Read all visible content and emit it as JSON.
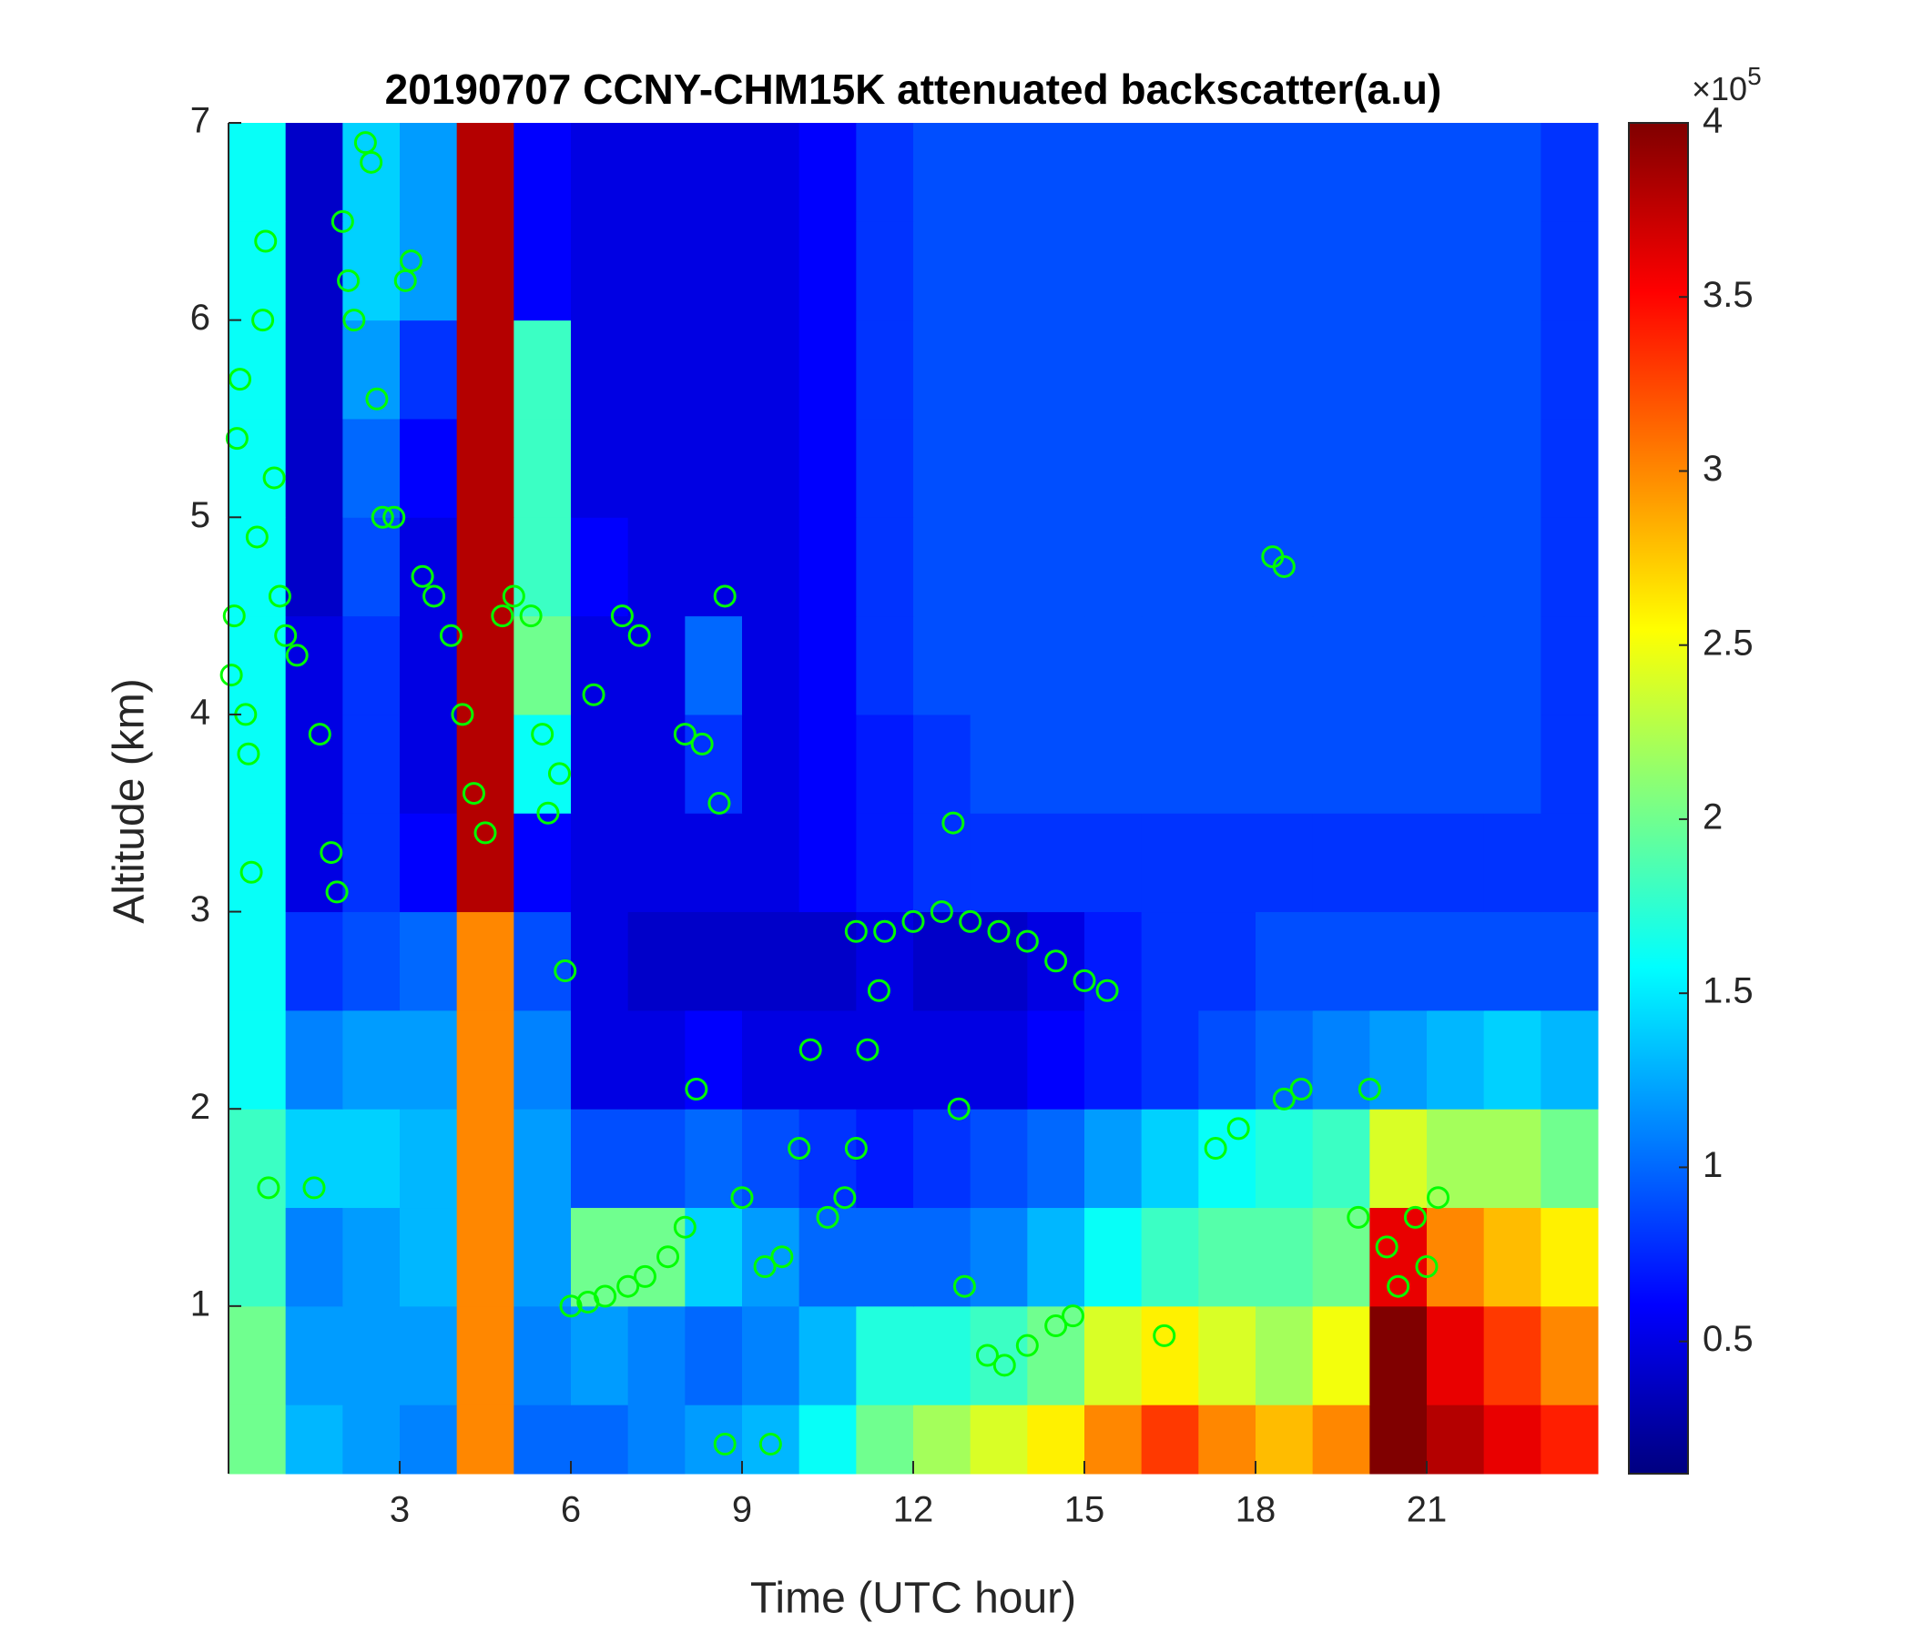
{
  "chart_data": {
    "type": "heatmap",
    "title": "20190707 CCNY-CHM15K attenuated backscatter(a.u)",
    "x_label": "Time (UTC hour)",
    "y_label": "Altitude (km)",
    "xlim": [
      0,
      24
    ],
    "ylim": [
      0.15,
      7
    ],
    "xticks": [
      3,
      6,
      9,
      12,
      15,
      18,
      21
    ],
    "yticks": [
      1,
      2,
      3,
      4,
      5,
      6,
      7
    ],
    "xbins": [
      0,
      1,
      2,
      3,
      4,
      5,
      6,
      7,
      8,
      9,
      10,
      11,
      12,
      13,
      14,
      15,
      16,
      17,
      18,
      19,
      20,
      21,
      22,
      23,
      24
    ],
    "ybins": [
      0.15,
      0.5,
      1,
      1.5,
      2,
      2.5,
      3,
      3.5,
      4,
      4.5,
      5,
      5.5,
      6,
      6.5,
      7
    ],
    "z": [
      [
        2.0,
        1.3,
        1.2,
        1.1,
        3.0,
        1.0,
        1.0,
        1.1,
        1.2,
        1.3,
        1.6,
        2.0,
        2.2,
        2.4,
        2.6,
        3.0,
        3.3,
        3.0,
        2.8,
        3.0,
        4.0,
        3.8,
        3.6,
        3.4
      ],
      [
        2.0,
        1.2,
        1.2,
        1.2,
        3.0,
        1.1,
        1.2,
        1.1,
        1.0,
        1.1,
        1.3,
        1.7,
        1.7,
        1.8,
        2.0,
        2.4,
        2.6,
        2.4,
        2.2,
        2.5,
        4.0,
        3.6,
        3.3,
        3.0
      ],
      [
        1.8,
        1.1,
        1.2,
        1.3,
        3.0,
        1.2,
        2.0,
        2.0,
        1.4,
        1.2,
        1.0,
        1.0,
        1.0,
        1.1,
        1.3,
        1.6,
        1.8,
        1.9,
        1.9,
        2.0,
        3.6,
        3.0,
        2.8,
        2.6
      ],
      [
        1.8,
        1.4,
        1.4,
        1.3,
        3.0,
        1.2,
        0.9,
        0.9,
        1.0,
        0.9,
        0.8,
        0.7,
        0.8,
        0.9,
        1.0,
        1.2,
        1.4,
        1.6,
        1.7,
        1.8,
        2.4,
        2.2,
        2.2,
        2.0
      ],
      [
        1.6,
        1.1,
        1.2,
        1.2,
        3.0,
        1.1,
        0.5,
        0.5,
        0.6,
        0.5,
        0.5,
        0.5,
        0.5,
        0.5,
        0.6,
        0.7,
        0.8,
        0.9,
        1.0,
        1.1,
        1.2,
        1.3,
        1.4,
        1.3
      ],
      [
        1.6,
        0.8,
        0.9,
        1.0,
        3.0,
        0.9,
        0.5,
        0.4,
        0.4,
        0.4,
        0.4,
        0.5,
        0.4,
        0.4,
        0.5,
        0.7,
        0.8,
        0.8,
        0.9,
        0.9,
        0.9,
        0.9,
        0.9,
        0.9
      ],
      [
        1.6,
        0.5,
        0.8,
        0.6,
        3.8,
        0.6,
        0.5,
        0.5,
        0.5,
        0.5,
        0.6,
        0.7,
        0.8,
        0.8,
        0.8,
        0.8,
        0.8,
        0.8,
        0.8,
        0.8,
        0.8,
        0.8,
        0.8,
        0.8
      ],
      [
        1.6,
        0.5,
        0.8,
        0.5,
        3.8,
        1.6,
        0.5,
        0.5,
        0.8,
        0.5,
        0.6,
        0.7,
        0.8,
        0.9,
        0.9,
        0.9,
        0.9,
        0.9,
        0.9,
        0.9,
        0.9,
        0.9,
        0.9,
        0.8
      ],
      [
        1.6,
        0.5,
        0.8,
        0.5,
        3.8,
        2.0,
        0.5,
        0.5,
        1.0,
        0.5,
        0.6,
        0.8,
        0.9,
        0.9,
        0.9,
        0.9,
        0.9,
        0.9,
        0.9,
        0.9,
        0.9,
        0.9,
        0.9,
        0.8
      ],
      [
        1.6,
        0.4,
        0.9,
        0.5,
        3.8,
        1.8,
        0.6,
        0.5,
        0.5,
        0.5,
        0.6,
        0.8,
        0.9,
        0.9,
        0.9,
        0.9,
        0.9,
        0.9,
        0.9,
        0.9,
        0.9,
        0.9,
        0.9,
        0.8
      ],
      [
        1.6,
        0.4,
        1.0,
        0.6,
        3.8,
        1.8,
        0.5,
        0.5,
        0.5,
        0.5,
        0.6,
        0.8,
        0.9,
        0.9,
        0.9,
        0.9,
        0.9,
        0.9,
        0.9,
        0.9,
        0.9,
        0.9,
        0.9,
        0.8
      ],
      [
        1.6,
        0.4,
        1.2,
        0.8,
        3.8,
        1.8,
        0.5,
        0.5,
        0.5,
        0.5,
        0.6,
        0.8,
        0.9,
        0.9,
        0.9,
        0.9,
        0.9,
        0.9,
        0.9,
        0.9,
        0.9,
        0.9,
        0.9,
        0.8
      ],
      [
        1.6,
        0.4,
        1.4,
        1.2,
        3.8,
        0.6,
        0.5,
        0.5,
        0.5,
        0.5,
        0.6,
        0.8,
        0.9,
        0.9,
        0.9,
        0.9,
        0.9,
        0.9,
        0.9,
        0.9,
        0.9,
        0.9,
        0.9,
        0.8
      ],
      [
        1.6,
        0.4,
        1.4,
        1.2,
        3.8,
        0.6,
        0.5,
        0.5,
        0.5,
        0.5,
        0.6,
        0.8,
        0.9,
        0.9,
        0.9,
        0.9,
        0.9,
        0.9,
        0.9,
        0.9,
        0.9,
        0.9,
        0.9,
        0.8
      ]
    ],
    "colormap": "jet",
    "clim": [
      0.12,
      4
    ],
    "colorbar_ticks": [
      0.5,
      1,
      1.5,
      2,
      2.5,
      3,
      3.5,
      4
    ],
    "colorbar_scale": "×10",
    "colorbar_exponent": 5,
    "scatter": {
      "color": "#00ff00",
      "x": [
        0.05,
        0.1,
        0.15,
        0.2,
        0.3,
        0.35,
        0.4,
        0.5,
        0.6,
        0.65,
        0.7,
        0.8,
        0.9,
        1.0,
        1.2,
        1.5,
        1.6,
        1.8,
        1.9,
        2.0,
        2.1,
        2.2,
        2.4,
        2.5,
        2.6,
        2.7,
        2.9,
        3.1,
        3.2,
        3.4,
        3.6,
        3.9,
        4.1,
        4.3,
        4.5,
        4.8,
        5.0,
        5.3,
        5.5,
        5.6,
        5.8,
        5.9,
        6.0,
        6.3,
        6.6,
        7.0,
        7.3,
        7.7,
        8.0,
        6.4,
        6.9,
        7.2,
        8.0,
        8.3,
        8.2,
        8.7,
        8.6,
        9.0,
        9.4,
        9.7,
        10.0,
        10.2,
        10.5,
        10.8,
        11.0,
        11.2,
        11.4,
        11.0,
        11.5,
        12.0,
        12.5,
        13.0,
        13.5,
        14.0,
        14.5,
        15.0,
        15.4,
        12.8,
        12.9,
        13.3,
        13.6,
        14.0,
        14.5,
        14.8,
        16.4,
        17.3,
        17.7,
        18.3,
        18.5,
        18.5,
        18.8,
        19.8,
        20.0,
        20.3,
        20.5,
        20.8,
        21.0,
        21.2,
        8.7,
        9.5,
        12.7
      ],
      "y": [
        4.2,
        4.5,
        5.4,
        5.7,
        4.0,
        3.8,
        3.2,
        4.9,
        6.0,
        6.4,
        1.6,
        5.2,
        4.6,
        4.4,
        4.3,
        1.6,
        3.9,
        3.3,
        3.1,
        6.5,
        6.2,
        6.0,
        6.9,
        6.8,
        5.6,
        5.0,
        5.0,
        6.2,
        6.3,
        4.7,
        4.6,
        4.4,
        4.0,
        3.6,
        3.4,
        4.5,
        4.6,
        4.5,
        3.9,
        3.5,
        3.7,
        2.7,
        1.0,
        1.02,
        1.05,
        1.1,
        1.15,
        1.25,
        1.4,
        4.1,
        4.5,
        4.4,
        3.9,
        3.85,
        2.1,
        4.6,
        3.55,
        1.55,
        1.2,
        1.25,
        1.8,
        2.3,
        1.45,
        1.55,
        1.8,
        2.3,
        2.6,
        2.9,
        2.9,
        2.95,
        3.0,
        2.95,
        2.9,
        2.85,
        2.75,
        2.65,
        2.6,
        2.0,
        1.1,
        0.75,
        0.7,
        0.8,
        0.9,
        0.95,
        0.85,
        1.8,
        1.9,
        4.8,
        4.75,
        2.05,
        2.1,
        1.45,
        2.1,
        1.3,
        1.1,
        1.45,
        1.2,
        1.55,
        0.3,
        0.3,
        3.45
      ]
    }
  }
}
